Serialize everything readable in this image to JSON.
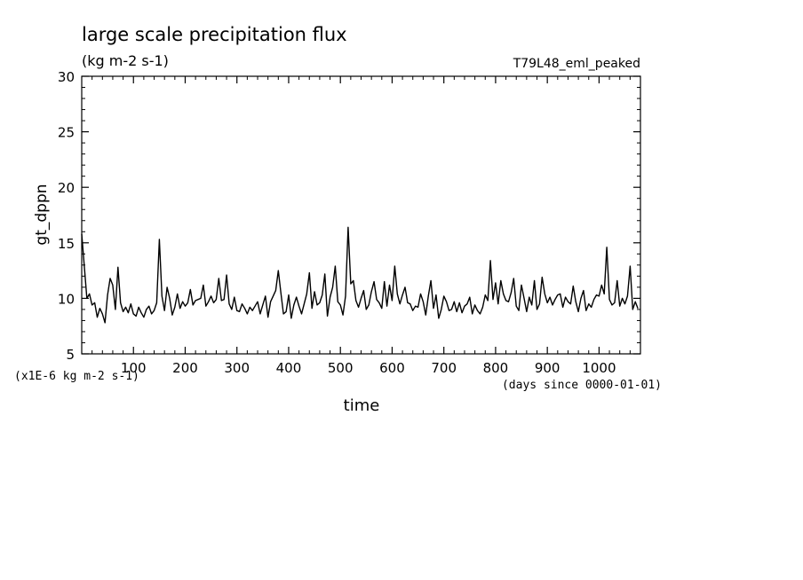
{
  "chart_data": {
    "type": "line",
    "title": "large scale precipitation flux",
    "subtitle": "(kg m-2 s-1)",
    "experiment": "T79L48_eml_peaked",
    "ylabel": "gt_dppn",
    "xlabel": "time",
    "y_unit_note": "(x1E-6 kg m-2 s-1)",
    "x_unit_note": "(days since 0000-01-01)",
    "xlim": [
      0,
      1080
    ],
    "ylim": [
      5,
      30
    ],
    "x_ticks": [
      100,
      200,
      300,
      400,
      500,
      600,
      700,
      800,
      900,
      1000
    ],
    "y_ticks": [
      5,
      10,
      15,
      20,
      25,
      30
    ],
    "grid": false,
    "series": [
      {
        "x": [
          0,
          5,
          10,
          15,
          20,
          25,
          30,
          35,
          40,
          45,
          50,
          55,
          60,
          65,
          70,
          75,
          80,
          85,
          90,
          95,
          100,
          105,
          110,
          115,
          120,
          125,
          130,
          135,
          140,
          145,
          150,
          155,
          160,
          165,
          170,
          175,
          180,
          185,
          190,
          195,
          200,
          205,
          210,
          215,
          220,
          225,
          230,
          235,
          240,
          245,
          250,
          255,
          260,
          265,
          270,
          275,
          280,
          285,
          290,
          295,
          300,
          305,
          310,
          315,
          320,
          325,
          330,
          335,
          340,
          345,
          350,
          355,
          360,
          365,
          370,
          375,
          380,
          385,
          390,
          395,
          400,
          405,
          410,
          415,
          420,
          425,
          430,
          435,
          440,
          445,
          450,
          455,
          460,
          465,
          470,
          475,
          480,
          485,
          490,
          495,
          500,
          505,
          510,
          515,
          520,
          525,
          530,
          535,
          540,
          545,
          550,
          555,
          560,
          565,
          570,
          575,
          580,
          585,
          590,
          595,
          600,
          605,
          610,
          615,
          620,
          625,
          630,
          635,
          640,
          645,
          650,
          655,
          660,
          665,
          670,
          675,
          680,
          685,
          690,
          695,
          700,
          705,
          710,
          715,
          720,
          725,
          730,
          735,
          740,
          745,
          750,
          755,
          760,
          765,
          770,
          775,
          780,
          785,
          790,
          795,
          800,
          805,
          810,
          815,
          820,
          825,
          830,
          835,
          840,
          845,
          850,
          855,
          860,
          865,
          870,
          875,
          880,
          885,
          890,
          895,
          900,
          905,
          910,
          915,
          920,
          925,
          930,
          935,
          940,
          945,
          950,
          955,
          960,
          965,
          970,
          975,
          980,
          985,
          990,
          995,
          1000,
          1005,
          1010,
          1015,
          1020,
          1025,
          1030,
          1035,
          1040,
          1045,
          1050,
          1055,
          1060,
          1065,
          1070,
          1075
        ],
        "y": [
          15.8,
          12.9,
          10.0,
          10.4,
          9.4,
          9.6,
          8.3,
          9.1,
          8.6,
          7.8,
          10.3,
          11.8,
          11.2,
          9.0,
          12.8,
          9.6,
          8.8,
          9.2,
          8.7,
          9.5,
          8.6,
          8.4,
          9.2,
          8.7,
          8.3,
          9.0,
          9.3,
          8.6,
          8.9,
          9.6,
          15.3,
          10.2,
          8.9,
          11.0,
          10.0,
          8.5,
          9.2,
          10.4,
          9.1,
          9.7,
          9.3,
          9.6,
          10.8,
          9.4,
          9.8,
          9.9,
          10.0,
          11.2,
          9.3,
          9.7,
          10.2,
          9.6,
          9.9,
          11.8,
          9.8,
          9.9,
          12.1,
          9.5,
          9.0,
          10.1,
          8.9,
          8.8,
          9.5,
          9.1,
          8.6,
          9.2,
          8.9,
          9.3,
          9.7,
          8.6,
          9.4,
          10.2,
          8.3,
          9.7,
          10.2,
          10.7,
          12.5,
          10.5,
          8.6,
          8.8,
          10.3,
          8.2,
          9.4,
          10.1,
          9.3,
          8.6,
          9.5,
          10.4,
          12.3,
          9.1,
          10.6,
          9.4,
          9.6,
          10.3,
          12.2,
          8.4,
          10.1,
          11.0,
          12.9,
          9.7,
          9.4,
          8.5,
          10.2,
          16.4,
          11.3,
          11.6,
          9.8,
          9.2,
          10.0,
          10.7,
          9.0,
          9.4,
          10.6,
          11.5,
          9.9,
          9.6,
          9.1,
          11.5,
          9.3,
          11.2,
          9.8,
          12.9,
          10.4,
          9.5,
          10.3,
          11.0,
          9.6,
          9.5,
          8.9,
          9.3,
          9.2,
          10.4,
          9.7,
          8.5,
          10.2,
          11.6,
          9.1,
          10.3,
          8.2,
          9.0,
          10.2,
          9.7,
          8.9,
          9.0,
          9.7,
          8.8,
          9.6,
          8.7,
          9.3,
          9.5,
          10.1,
          8.6,
          9.4,
          8.9,
          8.6,
          9.2,
          10.3,
          9.8,
          13.4,
          9.9,
          11.4,
          9.5,
          11.6,
          10.4,
          9.8,
          9.7,
          10.5,
          11.8,
          9.3,
          8.9,
          11.2,
          10.0,
          8.8,
          10.1,
          9.4,
          11.6,
          9.0,
          9.5,
          11.9,
          10.4,
          9.6,
          10.1,
          9.4,
          9.9,
          10.3,
          10.4,
          9.2,
          10.1,
          9.7,
          9.5,
          11.1,
          9.7,
          8.8,
          10.0,
          10.7,
          8.9,
          9.5,
          9.2,
          9.9,
          10.3,
          10.2,
          11.2,
          10.4,
          14.6,
          9.9,
          9.4,
          9.6,
          11.6,
          9.3,
          10.0,
          9.5,
          10.2,
          12.9,
          9.0,
          9.7,
          9.1
        ]
      }
    ]
  }
}
